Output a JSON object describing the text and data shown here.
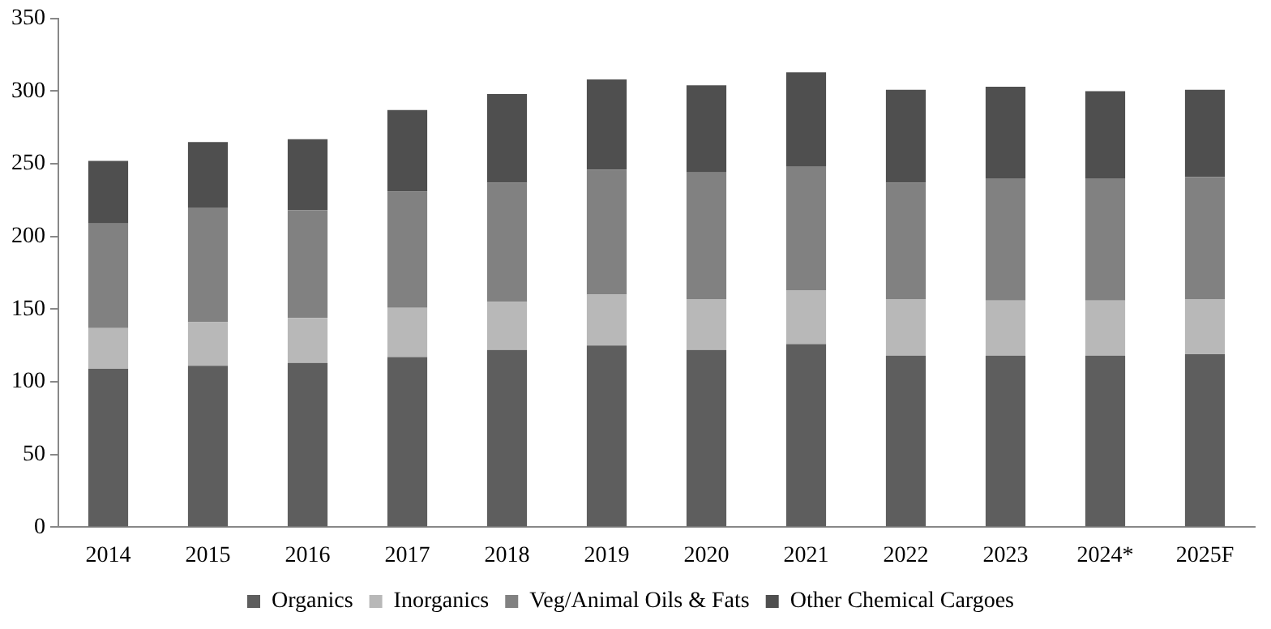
{
  "chart_data": {
    "type": "bar",
    "stacked": true,
    "categories": [
      "2014",
      "2015",
      "2016",
      "2017",
      "2018",
      "2019",
      "2020",
      "2021",
      "2022",
      "2023",
      "2024*",
      "2025F"
    ],
    "series": [
      {
        "name": "Organics",
        "color": "#5e5e5e",
        "values": [
          109,
          111,
          113,
          117,
          122,
          125,
          122,
          126,
          118,
          118,
          118,
          119
        ]
      },
      {
        "name": "Inorganics",
        "color": "#b8b8b8",
        "values": [
          28,
          30,
          31,
          34,
          33,
          35,
          35,
          37,
          39,
          38,
          38,
          38
        ]
      },
      {
        "name": "Veg/Animal Oils & Fats",
        "color": "#818181",
        "values": [
          72,
          79,
          74,
          80,
          82,
          86,
          87,
          85,
          80,
          84,
          84,
          84
        ]
      },
      {
        "name": "Other Chemical Cargoes",
        "color": "#4f4f4f",
        "values": [
          43,
          45,
          49,
          56,
          61,
          62,
          60,
          65,
          64,
          63,
          60,
          60
        ]
      }
    ],
    "ylim": [
      0,
      350
    ],
    "yticks": [
      0,
      50,
      100,
      150,
      200,
      250,
      300,
      350
    ],
    "grid": false,
    "legend": "bottom"
  }
}
